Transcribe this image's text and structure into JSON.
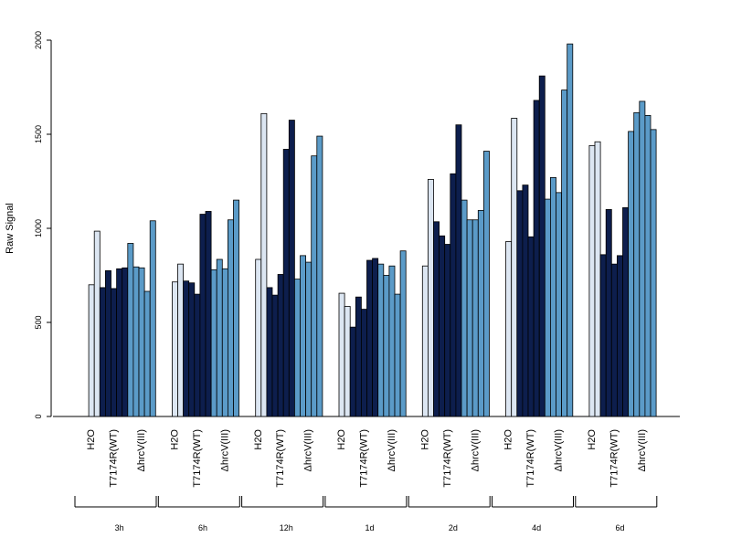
{
  "chart_data": {
    "type": "bar",
    "ylabel": "Raw Signal",
    "ylim": [
      0,
      2000
    ],
    "yticks": [
      "0",
      "500",
      "1000",
      "1500",
      "2000"
    ],
    "group_labels": [
      "H2O",
      "T7174R(WT)",
      "ΔhrcV(III)"
    ],
    "colors": {
      "H2O": "#dce6f2",
      "T7174R(WT)": "#0d1e4d",
      "ΔhrcV(III)": "#5b9bc8"
    },
    "timepoints": [
      {
        "label": "3h",
        "H2O": [
          0,
          700,
          985
        ],
        "T7174R(WT)": [
          685,
          775,
          680,
          785,
          790
        ],
        "ΔhrcV(III)": [
          920,
          795,
          790,
          665,
          1040
        ]
      },
      {
        "label": "6h",
        "H2O": [
          0,
          715,
          810
        ],
        "T7174R(WT)": [
          720,
          710,
          650,
          1075,
          1090
        ],
        "ΔhrcV(III)": [
          780,
          835,
          785,
          1045,
          1150
        ]
      },
      {
        "label": "12h",
        "H2O": [
          0,
          835,
          1610
        ],
        "T7174R(WT)": [
          685,
          645,
          755,
          1420,
          1575
        ],
        "ΔhrcV(III)": [
          730,
          855,
          820,
          1385,
          1490
        ]
      },
      {
        "label": "1d",
        "H2O": [
          0,
          655,
          585
        ],
        "T7174R(WT)": [
          475,
          635,
          570,
          830,
          840
        ],
        "ΔhrcV(III)": [
          810,
          750,
          800,
          650,
          880
        ]
      },
      {
        "label": "2d",
        "H2O": [
          0,
          800,
          1260
        ],
        "T7174R(WT)": [
          1035,
          960,
          915,
          1290,
          1550
        ],
        "ΔhrcV(III)": [
          1150,
          1045,
          1045,
          1095,
          1410
        ]
      },
      {
        "label": "4d",
        "H2O": [
          0,
          930,
          1585
        ],
        "T7174R(WT)": [
          1200,
          1230,
          955,
          1680,
          1810
        ],
        "ΔhrcV(III)": [
          1155,
          1270,
          1190,
          1735,
          1980
        ]
      },
      {
        "label": "6d",
        "H2O": [
          0,
          1440,
          1460
        ],
        "T7174R(WT)": [
          860,
          1100,
          810,
          855,
          1110
        ],
        "ΔhrcV(III)": [
          1515,
          1615,
          1675,
          1600,
          1525
        ]
      }
    ]
  }
}
